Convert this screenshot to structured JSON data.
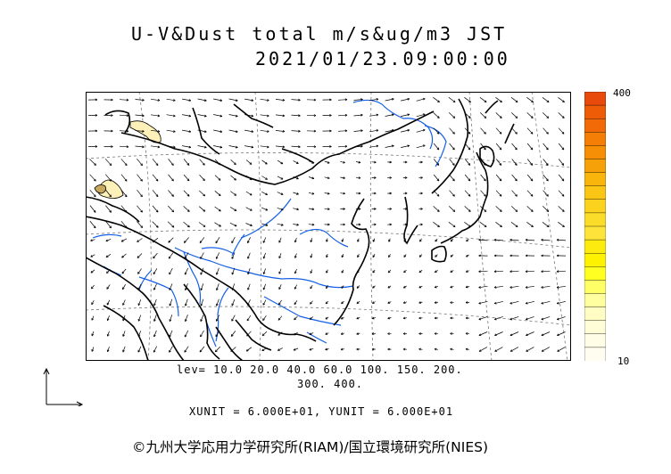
{
  "title": {
    "line1": "U-V&Dust total m/s&ug/m3 JST",
    "line2": "2021/01/23.09:00:00"
  },
  "colorbar": {
    "max_label": "400",
    "min_label": "10",
    "colors": [
      "#e84a0c",
      "#ee5c08",
      "#f26a08",
      "#f47e06",
      "#f68f06",
      "#f7a108",
      "#f9b50c",
      "#fac514",
      "#fbd21e",
      "#fcdc2a",
      "#fde33a",
      "#fdeb10",
      "#fff200",
      "#ffff22",
      "#ffff66",
      "#ffffa0",
      "#fffcc4",
      "#fffcd8",
      "#fffde6",
      "#fffdf0"
    ]
  },
  "levels": {
    "line1": "lev= 10.0 20.0 40.0 60.0 100. 150. 200.",
    "line2": "300. 400."
  },
  "units": "XUNIT = 6.000E+01, YUNIT = 6.000E+01",
  "credit": "©九州大学応用力学研究所(RIAM)/国立環境研究所(NIES)",
  "colors": {
    "coastline": "#000000",
    "river": "#1560e6",
    "arrow": "#000000",
    "grid": "#777777",
    "dust_low": "#fdf3c0",
    "dust_mid": "#e8d08a"
  },
  "icons": [
    "wind-vector-icon",
    "axes-reference-icon"
  ]
}
